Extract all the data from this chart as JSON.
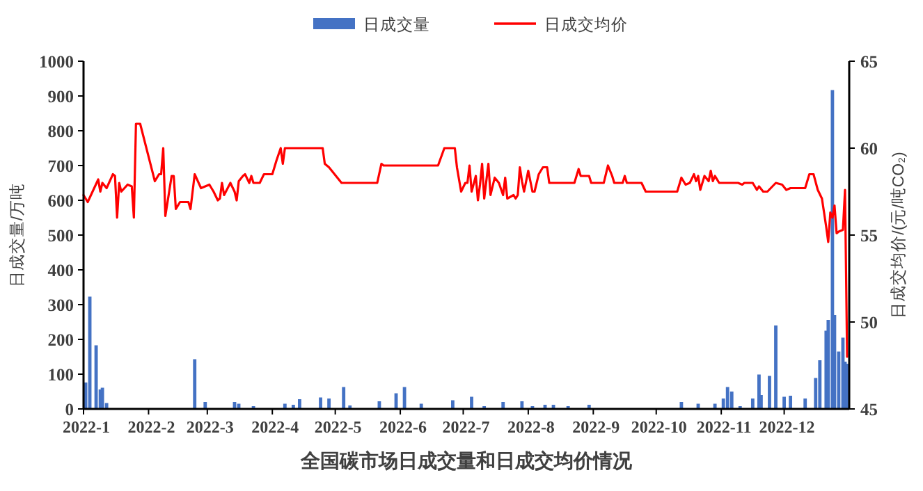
{
  "chart_data": {
    "type": "bar",
    "title": "全国碳市场日成交量和日成交均价情况",
    "ylabel": "日成交量/万吨",
    "y2label": "日成交均价/(元/吨CO₂)",
    "legend": "top",
    "xlim": [
      "2022-01-01",
      "2023-01-01"
    ],
    "xticks": [
      {
        "value": "2022-01-01",
        "label": "2022-1"
      },
      {
        "value": "2022-02-01",
        "label": "2022-2"
      },
      {
        "value": "2022-03-01",
        "label": "2022-3"
      },
      {
        "value": "2022-04-01",
        "label": "2022-4"
      },
      {
        "value": "2022-05-01",
        "label": "2022-5"
      },
      {
        "value": "2022-06-01",
        "label": "2022-6"
      },
      {
        "value": "2022-07-01",
        "label": "2022-7"
      },
      {
        "value": "2022-08-01",
        "label": "2022-8"
      },
      {
        "value": "2022-09-01",
        "label": "2022-9"
      },
      {
        "value": "2022-10-01",
        "label": "2022-10"
      },
      {
        "value": "2022-11-01",
        "label": "2022-11"
      },
      {
        "value": "2022-12-01",
        "label": "2022-12"
      }
    ],
    "ylim": [
      0,
      1000
    ],
    "yticks": [
      0,
      100,
      200,
      300,
      400,
      500,
      600,
      700,
      800,
      900,
      1000
    ],
    "y2lim": [
      45,
      65
    ],
    "y2ticks": [
      45,
      50,
      55,
      60,
      65
    ],
    "series": [
      {
        "name": "日成交量",
        "color": "#4472c4",
        "x": [
          "2022-01-02",
          "2022-01-04",
          "2022-01-07",
          "2022-01-09",
          "2022-01-10",
          "2022-01-12",
          "2022-02-23",
          "2022-02-28",
          "2022-03-14",
          "2022-03-16",
          "2022-03-23",
          "2022-04-07",
          "2022-04-11",
          "2022-04-14",
          "2022-04-24",
          "2022-04-28",
          "2022-05-05",
          "2022-05-08",
          "2022-05-22",
          "2022-05-30",
          "2022-06-03",
          "2022-06-11",
          "2022-06-26",
          "2022-07-05",
          "2022-07-11",
          "2022-07-20",
          "2022-07-29",
          "2022-08-03",
          "2022-08-09",
          "2022-08-13",
          "2022-08-20",
          "2022-08-30",
          "2022-10-13",
          "2022-10-21",
          "2022-10-29",
          "2022-11-02",
          "2022-11-04",
          "2022-11-06",
          "2022-11-10",
          "2022-11-16",
          "2022-11-19",
          "2022-11-20",
          "2022-11-24",
          "2022-11-27",
          "2022-12-01",
          "2022-12-04",
          "2022-12-11",
          "2022-12-16",
          "2022-12-18",
          "2022-12-21",
          "2022-12-22",
          "2022-12-24",
          "2022-12-25",
          "2022-12-27",
          "2022-12-29",
          "2022-12-30",
          "2022-12-31"
        ],
        "values": [
          76,
          323,
          183,
          56,
          61,
          17,
          143,
          20,
          20,
          15,
          8,
          15,
          12,
          28,
          33,
          30,
          63,
          10,
          22,
          45,
          63,
          15,
          25,
          35,
          8,
          20,
          22,
          8,
          12,
          12,
          8,
          12,
          20,
          15,
          15,
          30,
          63,
          50,
          8,
          30,
          99,
          40,
          95,
          240,
          35,
          38,
          30,
          89,
          140,
          225,
          256,
          917,
          270,
          165,
          205,
          136,
          130
        ]
      },
      {
        "name": "日成交均价",
        "type": "line",
        "axis": "y2",
        "color": "#ff0000",
        "x": [
          "2022-01-01",
          "2022-01-03",
          "2022-01-08",
          "2022-01-09",
          "2022-01-10",
          "2022-01-12",
          "2022-01-15",
          "2022-01-16",
          "2022-01-17",
          "2022-01-18",
          "2022-01-19",
          "2022-01-22",
          "2022-01-24",
          "2022-01-25",
          "2022-01-26",
          "2022-01-28",
          "2022-02-04",
          "2022-02-06",
          "2022-02-07",
          "2022-02-08",
          "2022-02-09",
          "2022-02-12",
          "2022-02-13",
          "2022-02-14",
          "2022-02-16",
          "2022-02-19",
          "2022-02-20",
          "2022-02-21",
          "2022-02-23",
          "2022-02-26",
          "2022-03-02",
          "2022-03-04",
          "2022-03-06",
          "2022-03-07",
          "2022-03-08",
          "2022-03-09",
          "2022-03-12",
          "2022-03-14",
          "2022-03-15",
          "2022-03-16",
          "2022-03-18",
          "2022-03-19",
          "2022-03-21",
          "2022-03-22",
          "2022-03-23",
          "2022-03-26",
          "2022-03-28",
          "2022-04-01",
          "2022-04-03",
          "2022-04-05",
          "2022-04-06",
          "2022-04-07",
          "2022-04-25",
          "2022-04-26",
          "2022-04-28",
          "2022-05-04",
          "2022-05-21",
          "2022-05-23",
          "2022-05-24",
          "2022-06-19",
          "2022-06-22",
          "2022-06-27",
          "2022-06-28",
          "2022-06-30",
          "2022-07-02",
          "2022-07-03",
          "2022-07-04",
          "2022-07-05",
          "2022-07-07",
          "2022-07-08",
          "2022-07-09",
          "2022-07-10",
          "2022-07-11",
          "2022-07-13",
          "2022-07-14",
          "2022-07-16",
          "2022-07-18",
          "2022-07-20",
          "2022-07-21",
          "2022-07-22",
          "2022-07-25",
          "2022-07-26",
          "2022-07-27",
          "2022-07-28",
          "2022-07-29",
          "2022-07-30",
          "2022-08-01",
          "2022-08-02",
          "2022-08-03",
          "2022-08-04",
          "2022-08-06",
          "2022-08-08",
          "2022-08-10",
          "2022-08-11",
          "2022-08-23",
          "2022-08-25",
          "2022-08-26",
          "2022-08-30",
          "2022-08-31",
          "2022-09-06",
          "2022-09-08",
          "2022-09-10",
          "2022-09-11",
          "2022-09-15",
          "2022-09-16",
          "2022-09-17",
          "2022-09-24",
          "2022-09-26",
          "2022-10-11",
          "2022-10-13",
          "2022-10-15",
          "2022-10-17",
          "2022-10-19",
          "2022-10-20",
          "2022-10-21",
          "2022-10-22",
          "2022-10-24",
          "2022-10-26",
          "2022-10-27",
          "2022-10-28",
          "2022-10-29",
          "2022-10-31",
          "2022-11-09",
          "2022-11-11",
          "2022-11-12",
          "2022-11-16",
          "2022-11-18",
          "2022-11-19",
          "2022-11-21",
          "2022-11-23",
          "2022-11-27",
          "2022-11-30",
          "2022-12-02",
          "2022-12-04",
          "2022-12-11",
          "2022-12-13",
          "2022-12-15",
          "2022-12-17",
          "2022-12-19",
          "2022-12-20",
          "2022-12-21",
          "2022-12-22",
          "2022-12-23",
          "2022-12-24",
          "2022-12-25",
          "2022-12-26",
          "2022-12-27",
          "2022-12-29",
          "2022-12-30",
          "2022-12-31"
        ],
        "values": [
          57.3,
          56.9,
          58.2,
          57.5,
          58.0,
          57.7,
          58.5,
          58.4,
          56.0,
          58.0,
          57.5,
          57.9,
          57.8,
          56.0,
          61.4,
          61.4,
          58.1,
          58.5,
          58.5,
          60.0,
          56.1,
          58.4,
          58.4,
          56.5,
          56.9,
          56.9,
          56.9,
          56.5,
          58.5,
          57.7,
          57.9,
          57.5,
          57.0,
          57.1,
          58.0,
          57.3,
          58.0,
          57.5,
          57.0,
          58.1,
          58.4,
          58.5,
          58.0,
          58.4,
          58.0,
          58.0,
          58.5,
          58.5,
          59.3,
          60.0,
          59.1,
          60.0,
          60.0,
          59.1,
          58.9,
          58.0,
          58.0,
          59.1,
          59.0,
          59.0,
          60.0,
          60.0,
          58.9,
          57.5,
          58.0,
          58.0,
          59.0,
          57.5,
          58.4,
          57.0,
          57.9,
          59.1,
          57.1,
          59.1,
          57.3,
          58.3,
          58.0,
          57.3,
          58.3,
          57.1,
          57.3,
          57.1,
          57.3,
          58.9,
          58.1,
          57.5,
          58.7,
          58.1,
          57.5,
          57.5,
          58.5,
          58.9,
          58.9,
          58.0,
          58.0,
          58.8,
          58.4,
          58.4,
          58.0,
          58.0,
          59.0,
          58.4,
          58.0,
          58.0,
          58.4,
          58.0,
          58.0,
          57.5,
          57.5,
          58.3,
          57.9,
          58.0,
          58.5,
          58.1,
          58.4,
          57.6,
          58.4,
          58.1,
          58.7,
          58.1,
          58.4,
          58.0,
          58.0,
          57.9,
          58.0,
          58.0,
          57.6,
          57.8,
          57.5,
          57.5,
          58.0,
          57.9,
          57.6,
          57.7,
          57.7,
          58.5,
          58.5,
          57.6,
          57.1,
          56.3,
          55.5,
          54.6,
          56.3,
          56.0,
          56.7,
          55.1,
          55.2,
          55.3,
          57.6,
          48.0
        ]
      }
    ]
  }
}
